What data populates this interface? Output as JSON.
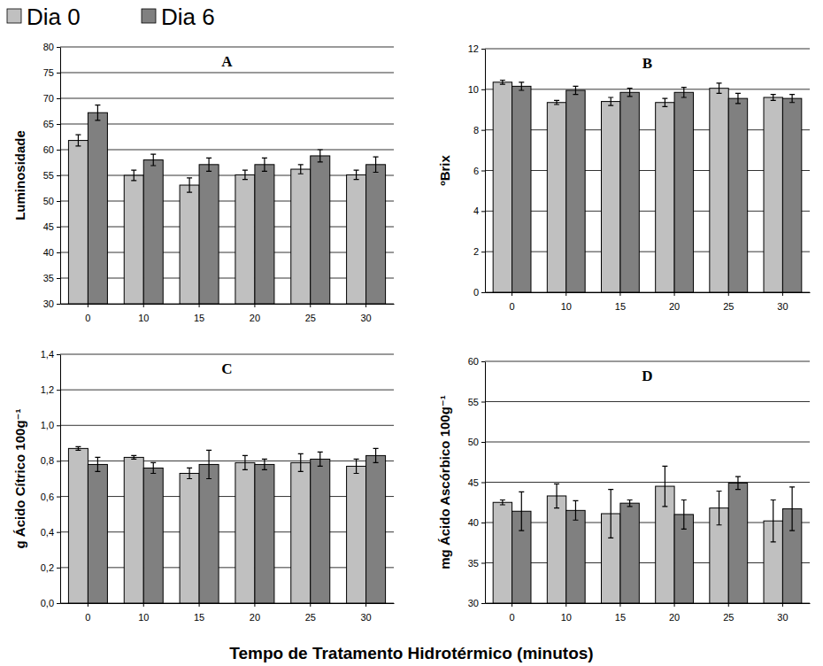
{
  "chart_data": [
    {
      "type": "bar",
      "title": "A",
      "ylabel": "Luminosidade",
      "categories": [
        "0",
        "10",
        "15",
        "20",
        "25",
        "30"
      ],
      "series": [
        {
          "name": "Dia 0",
          "color": "#c0c0c0",
          "values": [
            61.8,
            55.0,
            53.1,
            55.1,
            56.2,
            55.1
          ],
          "errors": [
            1.1,
            1.0,
            1.4,
            0.9,
            0.9,
            0.9
          ]
        },
        {
          "name": "Dia 6",
          "color": "#808080",
          "values": [
            67.2,
            58.0,
            57.1,
            57.1,
            58.8,
            57.1
          ],
          "errors": [
            1.5,
            1.1,
            1.3,
            1.3,
            1.2,
            1.5
          ]
        }
      ],
      "ylim": [
        30,
        80
      ],
      "yticks": [
        30,
        35,
        40,
        45,
        50,
        55,
        60,
        65,
        70,
        75,
        80
      ],
      "grid": true
    },
    {
      "type": "bar",
      "title": "B",
      "ylabel": "ºBrix",
      "categories": [
        "0",
        "10",
        "15",
        "20",
        "25",
        "30"
      ],
      "series": [
        {
          "name": "Dia 0",
          "color": "#c0c0c0",
          "values": [
            10.35,
            9.35,
            9.4,
            9.35,
            10.05,
            9.6
          ],
          "errors": [
            0.1,
            0.1,
            0.2,
            0.2,
            0.25,
            0.15
          ]
        },
        {
          "name": "Dia 6",
          "color": "#808080",
          "values": [
            10.15,
            9.95,
            9.85,
            9.85,
            9.55,
            9.55
          ],
          "errors": [
            0.2,
            0.2,
            0.2,
            0.25,
            0.25,
            0.2
          ]
        }
      ],
      "ylim": [
        0,
        12
      ],
      "yticks": [
        0,
        2,
        4,
        6,
        8,
        10,
        12
      ],
      "grid": true
    },
    {
      "type": "bar",
      "title": "C",
      "ylabel": "g Ácido Cítrico 100g⁻¹",
      "xlabel": "Tempo de Tratamento Hidrotérmico (minutos)",
      "categories": [
        "0",
        "10",
        "15",
        "20",
        "25",
        "30"
      ],
      "series": [
        {
          "name": "Dia 0",
          "color": "#c0c0c0",
          "values": [
            0.87,
            0.82,
            0.73,
            0.79,
            0.79,
            0.77
          ],
          "errors": [
            0.01,
            0.01,
            0.03,
            0.04,
            0.05,
            0.04
          ]
        },
        {
          "name": "Dia 6",
          "color": "#808080",
          "values": [
            0.78,
            0.76,
            0.78,
            0.78,
            0.81,
            0.83
          ],
          "errors": [
            0.04,
            0.03,
            0.08,
            0.03,
            0.04,
            0.04
          ]
        }
      ],
      "ylim": [
        0,
        1.4
      ],
      "yticks": [
        {
          "value": 0,
          "label": "0,0"
        },
        {
          "value": 0.2,
          "label": "0,2"
        },
        {
          "value": 0.4,
          "label": "0,4"
        },
        {
          "value": 0.6,
          "label": "0,6"
        },
        {
          "value": 0.8,
          "label": "0,8"
        },
        {
          "value": 1.0,
          "label": "1,0"
        },
        {
          "value": 1.2,
          "label": "1,2"
        },
        {
          "value": 1.4,
          "label": "1,4"
        }
      ],
      "grid": true
    },
    {
      "type": "bar",
      "title": "D",
      "ylabel": "mg Ácido Ascórbico 100g⁻¹",
      "categories": [
        "0",
        "10",
        "15",
        "20",
        "25",
        "30"
      ],
      "series": [
        {
          "name": "Dia 0",
          "color": "#c0c0c0",
          "values": [
            42.5,
            43.3,
            41.1,
            44.5,
            41.8,
            40.2
          ],
          "errors": [
            0.3,
            1.5,
            3.0,
            2.5,
            2.1,
            2.6
          ]
        },
        {
          "name": "Dia 6",
          "color": "#808080",
          "values": [
            41.4,
            41.5,
            42.4,
            41.0,
            44.9,
            41.7
          ],
          "errors": [
            2.4,
            1.2,
            0.4,
            1.8,
            0.8,
            2.7
          ]
        }
      ],
      "ylim": [
        30,
        60
      ],
      "yticks": [
        30,
        35,
        40,
        45,
        50,
        55,
        60
      ],
      "grid": true
    }
  ]
}
